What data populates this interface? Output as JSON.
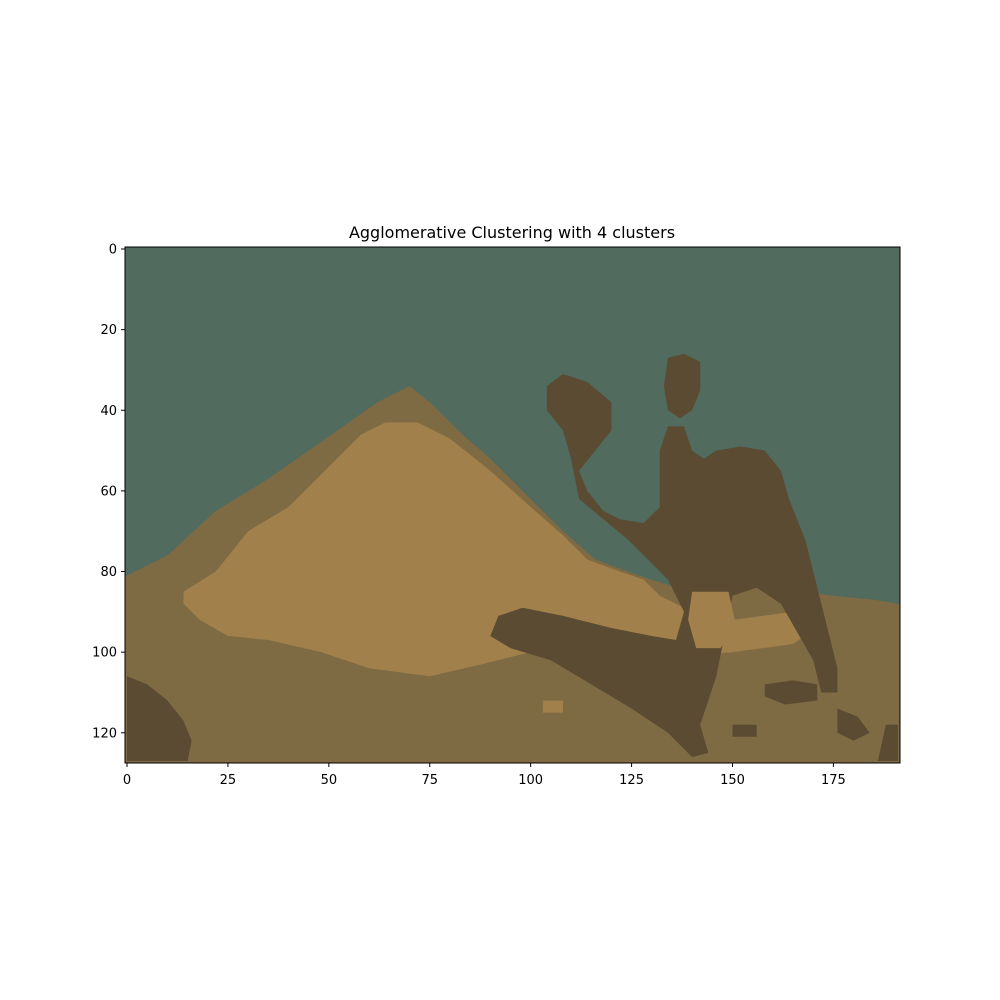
{
  "chart_data": {
    "type": "heatmap",
    "title": "Agglomerative Clustering with 4 clusters",
    "xlabel": "",
    "ylabel": "",
    "image_width": 192,
    "image_height": 128,
    "xlim": [
      -0.5,
      191.5
    ],
    "ylim": [
      127.5,
      -0.5
    ],
    "x_ticks": [
      0,
      25,
      50,
      75,
      100,
      125,
      150,
      175
    ],
    "y_ticks": [
      0,
      20,
      40,
      60,
      80,
      100,
      120
    ],
    "grid": false,
    "legend": "none",
    "clusters": [
      {
        "id": 0,
        "color": "#516b5e",
        "region": "sky"
      },
      {
        "id": 1,
        "color": "#a1804c",
        "region": "bright sand"
      },
      {
        "id": 2,
        "color": "#7e6a43",
        "region": "ground"
      },
      {
        "id": 3,
        "color": "#5b4b32",
        "region": "camel and rider"
      }
    ],
    "regions": {
      "sky_ridge": [
        [
          0,
          81
        ],
        [
          10,
          76
        ],
        [
          22,
          65
        ],
        [
          35,
          57
        ],
        [
          45,
          50
        ],
        [
          55,
          43
        ],
        [
          62,
          38
        ],
        [
          70,
          34
        ],
        [
          75,
          38
        ],
        [
          82,
          45
        ],
        [
          90,
          52
        ],
        [
          100,
          62
        ],
        [
          108,
          70
        ],
        [
          116,
          77
        ],
        [
          124,
          80
        ],
        [
          130,
          82
        ],
        [
          136,
          84
        ],
        [
          145,
          84
        ],
        [
          160,
          84
        ],
        [
          175,
          86
        ],
        [
          185,
          87
        ],
        [
          191,
          88
        ]
      ],
      "bright_sand": [
        [
          14,
          85
        ],
        [
          22,
          80
        ],
        [
          30,
          70
        ],
        [
          40,
          64
        ],
        [
          50,
          54
        ],
        [
          58,
          46
        ],
        [
          64,
          43
        ],
        [
          72,
          43
        ],
        [
          80,
          47
        ],
        [
          90,
          55
        ],
        [
          100,
          64
        ],
        [
          108,
          71
        ],
        [
          114,
          77
        ],
        [
          122,
          80
        ],
        [
          128,
          82
        ],
        [
          132,
          86
        ],
        [
          140,
          90
        ],
        [
          150,
          92
        ],
        [
          165,
          90
        ],
        [
          172,
          93
        ],
        [
          165,
          98
        ],
        [
          150,
          100
        ],
        [
          140,
          101
        ],
        [
          128,
          100
        ],
        [
          115,
          98
        ],
        [
          100,
          100
        ],
        [
          88,
          103
        ],
        [
          75,
          106
        ],
        [
          60,
          104
        ],
        [
          48,
          100
        ],
        [
          35,
          97
        ],
        [
          25,
          96
        ],
        [
          18,
          92
        ],
        [
          14,
          88
        ]
      ],
      "camel_body": [
        [
          108,
          31
        ],
        [
          114,
          33
        ],
        [
          120,
          38
        ],
        [
          120,
          45
        ],
        [
          116,
          50
        ],
        [
          112,
          55
        ],
        [
          114,
          60
        ],
        [
          118,
          65
        ],
        [
          122,
          67
        ],
        [
          128,
          68
        ],
        [
          132,
          64
        ],
        [
          132,
          50
        ],
        [
          134,
          44
        ],
        [
          138,
          44
        ],
        [
          140,
          50
        ],
        [
          143,
          52
        ],
        [
          146,
          50
        ],
        [
          152,
          49
        ],
        [
          158,
          50
        ],
        [
          162,
          55
        ],
        [
          164,
          62
        ],
        [
          168,
          72
        ],
        [
          170,
          80
        ],
        [
          172,
          88
        ],
        [
          174,
          96
        ],
        [
          176,
          104
        ],
        [
          176,
          110
        ],
        [
          172,
          110
        ],
        [
          170,
          102
        ],
        [
          166,
          95
        ],
        [
          162,
          88
        ],
        [
          156,
          84
        ],
        [
          150,
          86
        ],
        [
          148,
          96
        ],
        [
          146,
          106
        ],
        [
          144,
          112
        ],
        [
          142,
          118
        ],
        [
          144,
          125
        ],
        [
          140,
          126
        ],
        [
          134,
          120
        ],
        [
          125,
          114
        ],
        [
          115,
          108
        ],
        [
          105,
          102
        ],
        [
          95,
          99
        ],
        [
          90,
          96
        ],
        [
          92,
          91
        ],
        [
          98,
          89
        ],
        [
          108,
          91
        ],
        [
          120,
          94
        ],
        [
          130,
          96
        ],
        [
          136,
          97
        ],
        [
          138,
          90
        ],
        [
          134,
          82
        ],
        [
          130,
          78
        ],
        [
          124,
          72
        ],
        [
          118,
          67
        ],
        [
          112,
          62
        ],
        [
          110,
          52
        ],
        [
          108,
          45
        ],
        [
          104,
          40
        ],
        [
          104,
          34
        ]
      ],
      "rider": [
        [
          134,
          27
        ],
        [
          138,
          26
        ],
        [
          142,
          28
        ],
        [
          142,
          35
        ],
        [
          140,
          40
        ],
        [
          137,
          42
        ],
        [
          134,
          40
        ],
        [
          133,
          34
        ]
      ],
      "ground_dark_left": [
        [
          0,
          106
        ],
        [
          5,
          108
        ],
        [
          10,
          112
        ],
        [
          14,
          117
        ],
        [
          16,
          122
        ],
        [
          15,
          127
        ],
        [
          0,
          127
        ]
      ],
      "ground_dark_right": [
        [
          188,
          118
        ],
        [
          191,
          118
        ],
        [
          191,
          127
        ],
        [
          186,
          127
        ]
      ],
      "ground_spots": [
        [
          [
            158,
            108
          ],
          [
            165,
            107
          ],
          [
            171,
            108
          ],
          [
            171,
            112
          ],
          [
            163,
            113
          ],
          [
            158,
            111
          ]
        ],
        [
          [
            176,
            114
          ],
          [
            181,
            116
          ],
          [
            184,
            120
          ],
          [
            180,
            122
          ],
          [
            176,
            120
          ]
        ],
        [
          [
            150,
            118
          ],
          [
            156,
            118
          ],
          [
            156,
            121
          ],
          [
            150,
            121
          ]
        ]
      ],
      "sand_spots": [
        [
          [
            103,
            112
          ],
          [
            108,
            112
          ],
          [
            108,
            115
          ],
          [
            103,
            115
          ]
        ],
        [
          [
            140,
            85
          ],
          [
            149,
            85
          ],
          [
            151,
            94
          ],
          [
            147,
            99
          ],
          [
            141,
            99
          ],
          [
            139,
            92
          ]
        ]
      ]
    }
  }
}
